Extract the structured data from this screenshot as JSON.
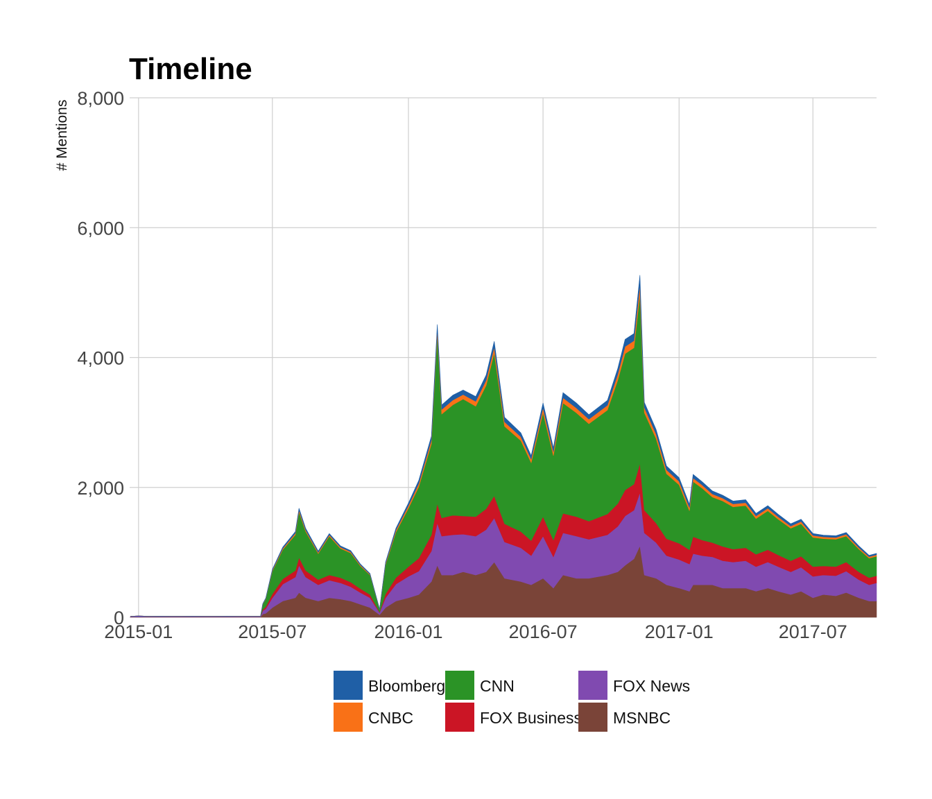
{
  "chart_data": {
    "type": "area",
    "stacked": true,
    "title": "Timeline",
    "xlabel": "",
    "ylabel": "# Mentions",
    "x_range": [
      "2014-12-20",
      "2017-09-25"
    ],
    "ylim": [
      0,
      8000
    ],
    "y_ticks": [
      0,
      2000,
      4000,
      6000,
      8000
    ],
    "y_tick_labels": [
      "0",
      "2,000",
      "4,000",
      "6,000",
      "8,000"
    ],
    "x_ticks": [
      "2015-01-01",
      "2015-07-01",
      "2016-01-01",
      "2016-07-01",
      "2017-01-01",
      "2017-07-01"
    ],
    "x_tick_labels": [
      "2015-01",
      "2015-07",
      "2016-01",
      "2016-07",
      "2017-01",
      "2017-07"
    ],
    "grid": true,
    "legend_position": "bottom",
    "x": [
      "2014-12-21",
      "2015-01-01",
      "2015-01-15",
      "2015-02-01",
      "2015-02-15",
      "2015-03-01",
      "2015-03-15",
      "2015-04-01",
      "2015-04-15",
      "2015-05-01",
      "2015-05-15",
      "2015-06-01",
      "2015-06-15",
      "2015-06-18",
      "2015-06-22",
      "2015-07-01",
      "2015-07-15",
      "2015-08-01",
      "2015-08-06",
      "2015-08-15",
      "2015-09-01",
      "2015-09-16",
      "2015-10-01",
      "2015-10-15",
      "2015-10-28",
      "2015-11-10",
      "2015-11-23",
      "2015-12-01",
      "2015-12-15",
      "2016-01-01",
      "2016-01-15",
      "2016-02-01",
      "2016-02-09",
      "2016-02-15",
      "2016-03-01",
      "2016-03-15",
      "2016-04-01",
      "2016-04-15",
      "2016-04-26",
      "2016-05-10",
      "2016-06-01",
      "2016-06-15",
      "2016-07-01",
      "2016-07-15",
      "2016-07-28",
      "2016-08-15",
      "2016-09-01",
      "2016-09-26",
      "2016-10-10",
      "2016-10-20",
      "2016-11-01",
      "2016-11-09",
      "2016-11-15",
      "2016-12-01",
      "2016-12-15",
      "2017-01-01",
      "2017-01-15",
      "2017-01-20",
      "2017-02-01",
      "2017-02-15",
      "2017-03-01",
      "2017-03-15",
      "2017-04-01",
      "2017-04-15",
      "2017-05-01",
      "2017-05-15",
      "2017-06-01",
      "2017-06-15",
      "2017-07-01",
      "2017-07-15",
      "2017-08-01",
      "2017-08-15",
      "2017-09-01",
      "2017-09-15",
      "2017-09-25"
    ],
    "series": [
      {
        "name": "MSNBC",
        "color": "#7a4438",
        "values": [
          5,
          5,
          5,
          5,
          5,
          5,
          5,
          5,
          5,
          5,
          5,
          5,
          5,
          50,
          60,
          150,
          250,
          300,
          380,
          300,
          250,
          300,
          280,
          250,
          200,
          150,
          40,
          150,
          250,
          300,
          350,
          550,
          800,
          650,
          650,
          700,
          650,
          700,
          850,
          600,
          550,
          500,
          600,
          450,
          650,
          600,
          600,
          650,
          700,
          800,
          900,
          1100,
          650,
          600,
          500,
          450,
          400,
          500,
          500,
          500,
          450,
          450,
          450,
          400,
          450,
          400,
          350,
          400,
          300,
          350,
          330,
          380,
          300,
          250,
          250
        ]
      },
      {
        "name": "FOX News",
        "color": "#804ab0",
        "values": [
          10,
          15,
          10,
          12,
          10,
          10,
          12,
          10,
          10,
          12,
          10,
          10,
          10,
          50,
          70,
          150,
          260,
          320,
          420,
          320,
          250,
          270,
          250,
          220,
          180,
          150,
          30,
          150,
          260,
          330,
          360,
          470,
          650,
          600,
          620,
          580,
          600,
          650,
          680,
          560,
          520,
          450,
          650,
          480,
          650,
          650,
          600,
          620,
          700,
          760,
          750,
          820,
          650,
          550,
          450,
          440,
          420,
          480,
          450,
          430,
          420,
          400,
          420,
          380,
          400,
          380,
          350,
          370,
          330,
          300,
          310,
          330,
          280,
          250,
          280
        ]
      },
      {
        "name": "FOX Business",
        "color": "#cb1525",
        "values": [
          0,
          0,
          0,
          0,
          0,
          0,
          0,
          0,
          0,
          0,
          0,
          0,
          0,
          20,
          30,
          60,
          80,
          100,
          120,
          100,
          80,
          80,
          80,
          70,
          60,
          50,
          10,
          60,
          100,
          150,
          200,
          250,
          300,
          280,
          300,
          280,
          300,
          320,
          340,
          280,
          250,
          230,
          300,
          260,
          300,
          300,
          280,
          320,
          350,
          400,
          400,
          450,
          350,
          300,
          260,
          250,
          220,
          260,
          240,
          220,
          220,
          200,
          200,
          190,
          190,
          180,
          170,
          170,
          150,
          140,
          140,
          140,
          120,
          110,
          110
        ]
      },
      {
        "name": "CNN",
        "color": "#2b9326",
        "values": [
          0,
          0,
          0,
          0,
          0,
          0,
          0,
          0,
          0,
          0,
          0,
          0,
          0,
          80,
          120,
          350,
          450,
          550,
          700,
          600,
          400,
          600,
          450,
          450,
          350,
          300,
          40,
          450,
          700,
          900,
          1100,
          1400,
          2600,
          1600,
          1700,
          1800,
          1700,
          1900,
          2200,
          1500,
          1400,
          1200,
          1600,
          1300,
          1700,
          1600,
          1500,
          1600,
          1900,
          2100,
          2100,
          2600,
          1500,
          1300,
          1000,
          900,
          600,
          850,
          800,
          700,
          700,
          650,
          650,
          550,
          600,
          550,
          500,
          500,
          450,
          420,
          420,
          400,
          350,
          300,
          300
        ]
      },
      {
        "name": "CNBC",
        "color": "#f97117",
        "values": [
          0,
          0,
          0,
          0,
          0,
          0,
          0,
          0,
          0,
          0,
          0,
          0,
          0,
          5,
          8,
          15,
          20,
          25,
          30,
          25,
          20,
          20,
          20,
          18,
          15,
          12,
          3,
          20,
          30,
          40,
          50,
          60,
          80,
          70,
          75,
          70,
          75,
          80,
          90,
          70,
          60,
          55,
          75,
          60,
          80,
          75,
          70,
          75,
          90,
          110,
          110,
          150,
          80,
          70,
          60,
          55,
          50,
          55,
          50,
          48,
          45,
          45,
          45,
          40,
          40,
          38,
          35,
          35,
          30,
          28,
          28,
          28,
          25,
          22,
          22
        ]
      },
      {
        "name": "Bloomberg",
        "color": "#1f5fa6",
        "values": [
          0,
          0,
          0,
          0,
          0,
          0,
          0,
          0,
          0,
          0,
          0,
          0,
          0,
          5,
          8,
          15,
          20,
          25,
          30,
          25,
          20,
          20,
          20,
          18,
          15,
          12,
          3,
          20,
          30,
          40,
          50,
          60,
          80,
          70,
          75,
          70,
          75,
          80,
          90,
          70,
          60,
          55,
          75,
          60,
          80,
          75,
          70,
          75,
          90,
          110,
          110,
          150,
          80,
          70,
          60,
          55,
          50,
          55,
          50,
          48,
          45,
          45,
          45,
          40,
          40,
          38,
          35,
          35,
          30,
          28,
          28,
          28,
          25,
          22,
          22
        ]
      }
    ],
    "legend": [
      {
        "label": "Bloomberg",
        "color": "#1f5fa6"
      },
      {
        "label": "CNBC",
        "color": "#f97117"
      },
      {
        "label": "CNN",
        "color": "#2b9326"
      },
      {
        "label": "FOX Business",
        "color": "#cb1525"
      },
      {
        "label": "FOX News",
        "color": "#804ab0"
      },
      {
        "label": "MSNBC",
        "color": "#7a4438"
      }
    ]
  }
}
